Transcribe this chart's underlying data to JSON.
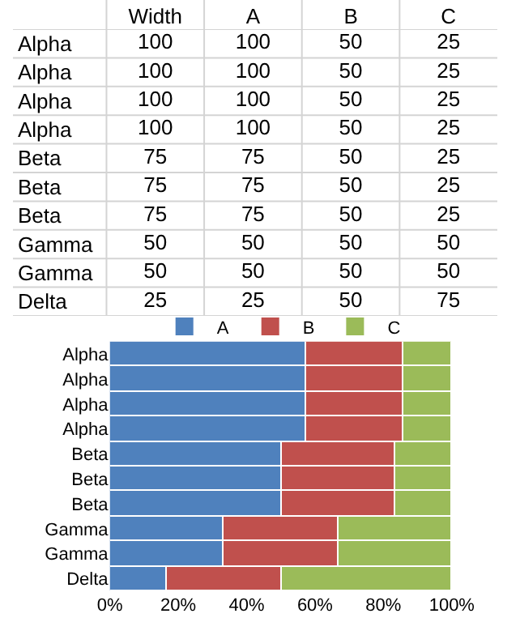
{
  "chart_data": [
    {
      "type": "heatmap",
      "data_labels": true,
      "categories": [
        "Width",
        "A",
        "B",
        "C"
      ],
      "y_categories": [
        "Alpha",
        "Alpha",
        "Alpha",
        "Alpha",
        "Beta",
        "Beta",
        "Beta",
        "Gamma",
        "Gamma",
        "Delta"
      ],
      "cells": [
        [
          100,
          100,
          50,
          25
        ],
        [
          100,
          100,
          50,
          25
        ],
        [
          100,
          100,
          50,
          25
        ],
        [
          100,
          100,
          50,
          25
        ],
        [
          75,
          75,
          50,
          25
        ],
        [
          75,
          75,
          50,
          25
        ],
        [
          75,
          75,
          50,
          25
        ],
        [
          50,
          50,
          50,
          50
        ],
        [
          50,
          50,
          50,
          50
        ],
        [
          25,
          25,
          50,
          75
        ]
      ]
    },
    {
      "type": "bar",
      "orientation": "horizontal",
      "stacked": true,
      "categories": [
        "Alpha",
        "Alpha",
        "Alpha",
        "Alpha",
        "Beta",
        "Beta",
        "Beta",
        "Gamma",
        "Gamma",
        "Delta"
      ],
      "series": [
        {
          "name": "A",
          "color": "#4f81bd",
          "values": [
            57.1,
            57.1,
            57.1,
            57.1,
            50,
            50,
            50,
            33.3,
            33.3,
            16.7
          ]
        },
        {
          "name": "B",
          "color": "#c0504d",
          "values": [
            28.6,
            28.6,
            28.6,
            28.6,
            33.3,
            33.3,
            33.3,
            33.3,
            33.3,
            33.3
          ]
        },
        {
          "name": "C",
          "color": "#9bbb59",
          "values": [
            14.3,
            14.3,
            14.3,
            14.3,
            16.7,
            16.7,
            16.7,
            33.4,
            33.4,
            50
          ]
        }
      ],
      "xlim": [
        0,
        100
      ],
      "xticks": [
        {
          "value": 0,
          "label": "0%"
        },
        {
          "value": 20,
          "label": "20%"
        },
        {
          "value": 40,
          "label": "40%"
        },
        {
          "value": 60,
          "label": "60%"
        },
        {
          "value": 80,
          "label": "80%"
        },
        {
          "value": 100,
          "label": "100%"
        }
      ],
      "legend": "top"
    }
  ]
}
